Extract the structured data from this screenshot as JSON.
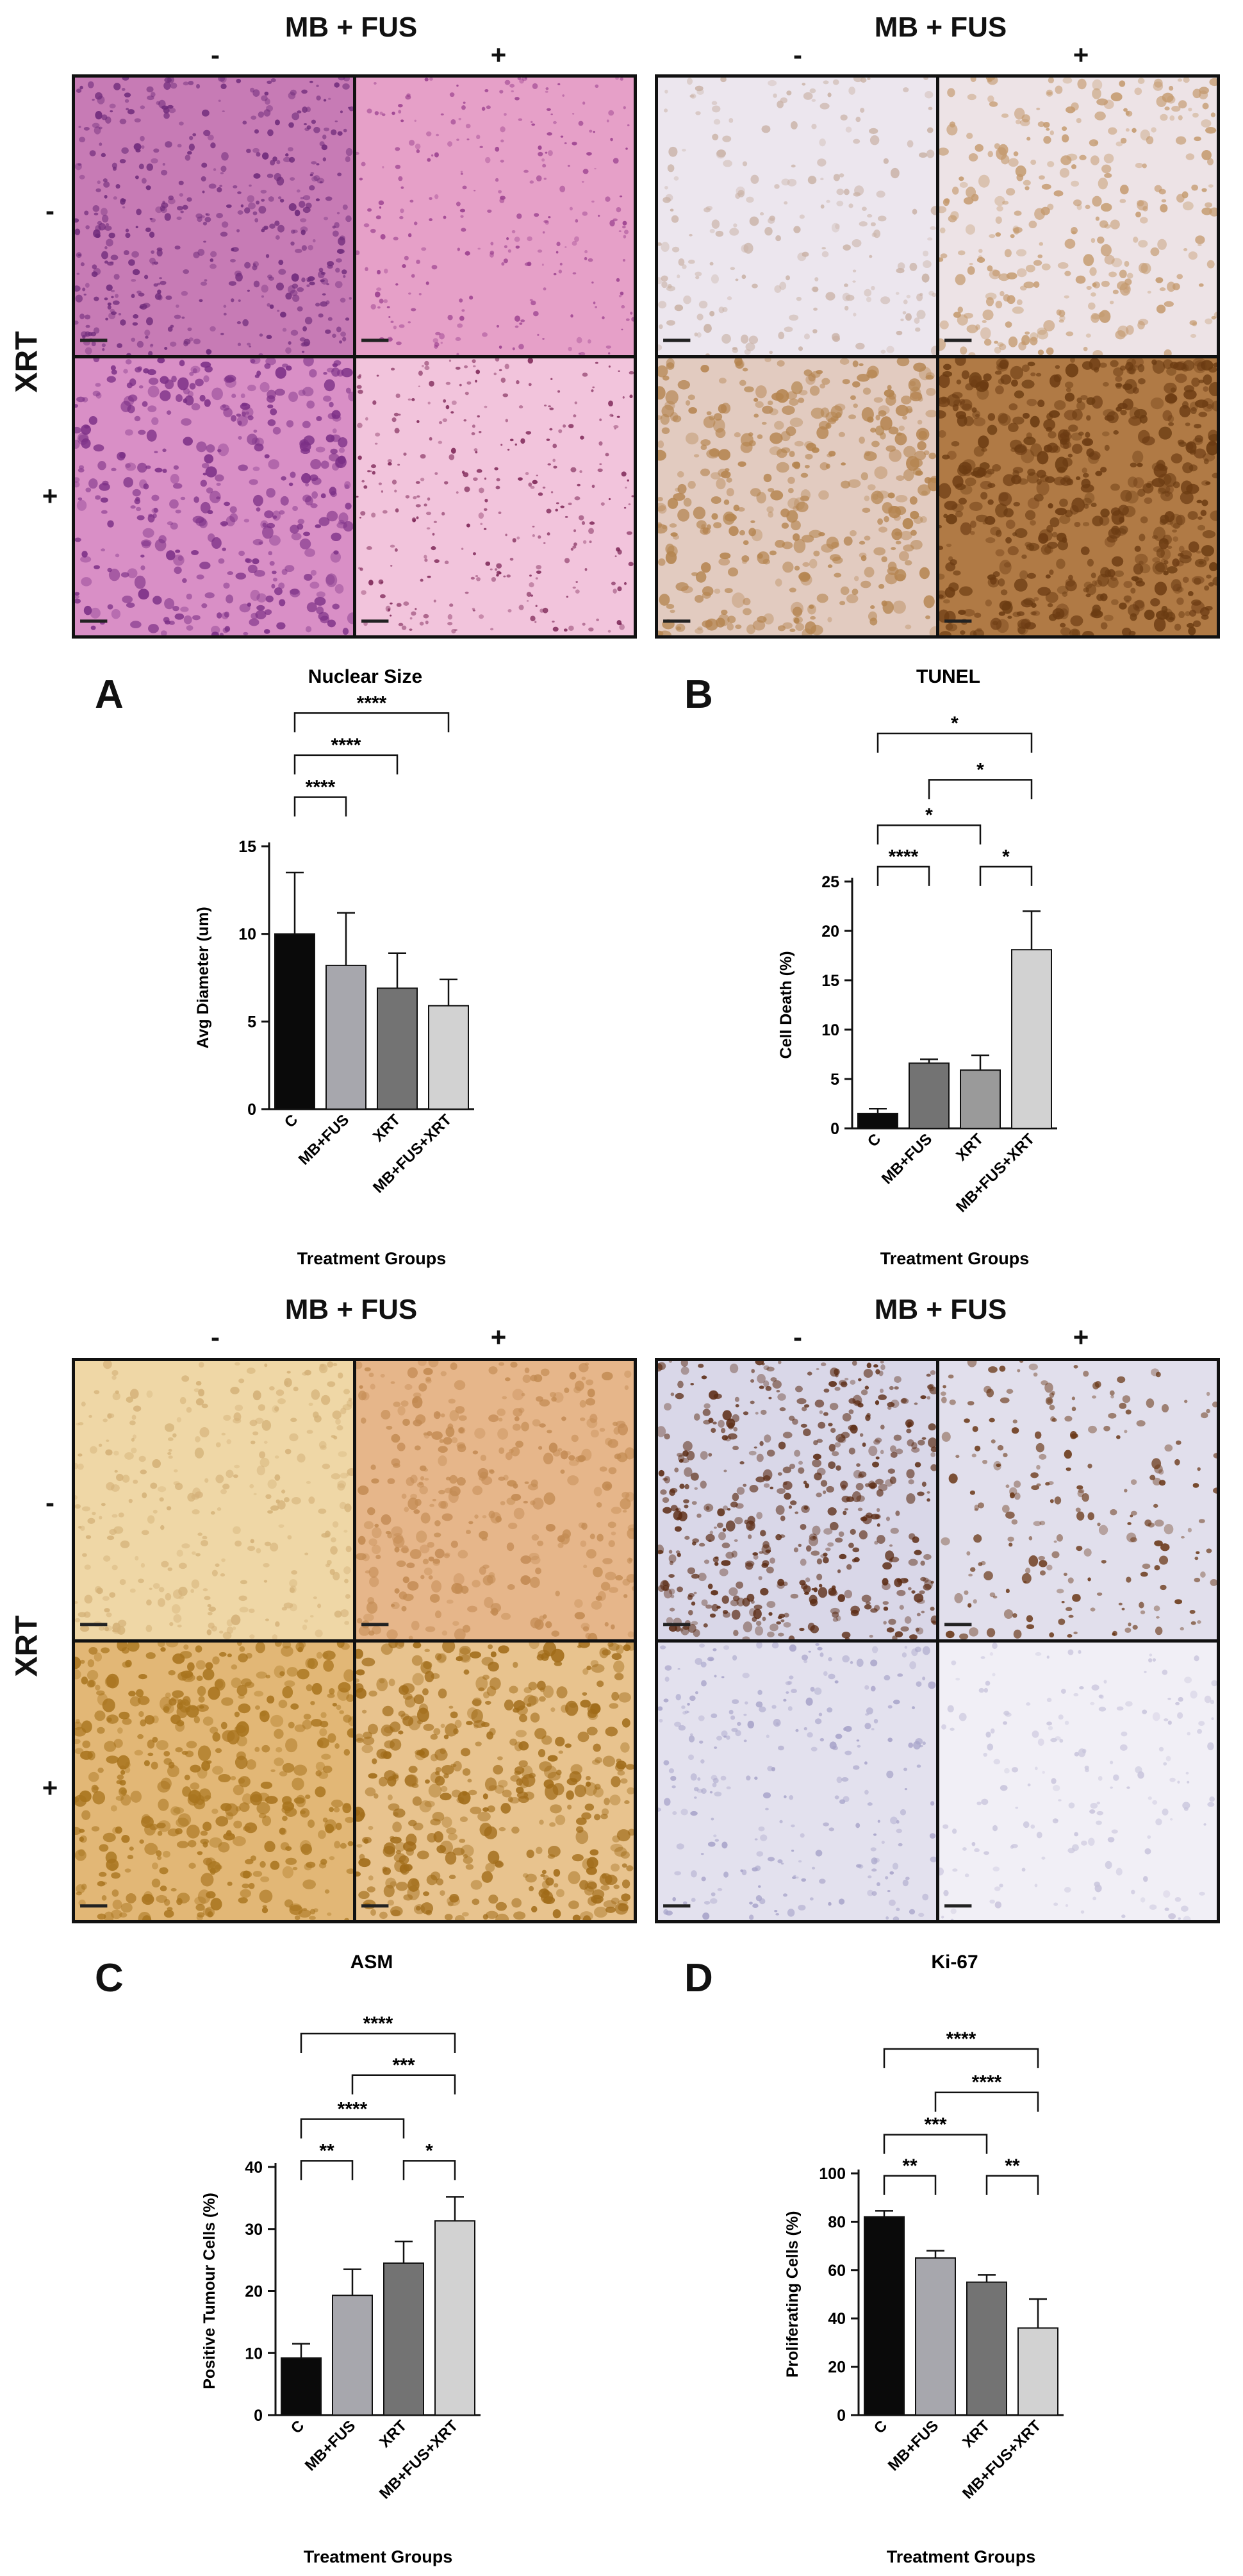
{
  "figure": {
    "micrograph_blocks": [
      {
        "header": "MB + FUS",
        "minus": "-",
        "plus": "+",
        "tiles": [
          {
            "base": "#c77bb5",
            "spot": "#6e2a7a",
            "density": 0.55,
            "spot_size": 4
          },
          {
            "base": "#e6a0c8",
            "spot": "#9a3f8e",
            "density": 0.3,
            "spot_size": 3
          },
          {
            "base": "#d98fc6",
            "spot": "#7b2f86",
            "density": 0.45,
            "spot_size": 6
          },
          {
            "base": "#f2c4dc",
            "spot": "#7c2455",
            "density": 0.35,
            "spot_size": 3
          }
        ]
      },
      {
        "header": "MB + FUS",
        "minus": "-",
        "plus": "+",
        "tiles": [
          {
            "base": "#ece6ee",
            "spot": "#c9b2a6",
            "density": 0.25,
            "spot_size": 5
          },
          {
            "base": "#ede3e6",
            "spot": "#c49a6e",
            "density": 0.35,
            "spot_size": 6
          },
          {
            "base": "#e2cbc0",
            "spot": "#b4844f",
            "density": 0.45,
            "spot_size": 7
          },
          {
            "base": "#b07a45",
            "spot": "#6b3b12",
            "density": 0.65,
            "spot_size": 7
          }
        ]
      },
      {
        "header": "MB + FUS",
        "minus": "-",
        "plus": "+",
        "tiles": [
          {
            "base": "#efd7a6",
            "spot": "#d4b178",
            "density": 0.35,
            "spot_size": 5
          },
          {
            "base": "#e6b68a",
            "spot": "#c28a52",
            "density": 0.4,
            "spot_size": 6
          },
          {
            "base": "#e2b776",
            "spot": "#a8741e",
            "density": 0.5,
            "spot_size": 7
          },
          {
            "base": "#e8c38e",
            "spot": "#a06b18",
            "density": 0.5,
            "spot_size": 7
          }
        ]
      },
      {
        "header": "MB + FUS",
        "minus": "-",
        "plus": "+",
        "tiles": [
          {
            "base": "#d9d7e8",
            "spot": "#5a2a12",
            "density": 0.6,
            "spot_size": 5
          },
          {
            "base": "#e1dfec",
            "spot": "#6a3818",
            "density": 0.25,
            "spot_size": 5
          },
          {
            "base": "#e3e1ee",
            "spot": "#a7a3c9",
            "density": 0.3,
            "spot_size": 4
          },
          {
            "base": "#f1eff6",
            "spot": "#c8c4dc",
            "density": 0.2,
            "spot_size": 4
          }
        ]
      }
    ],
    "row_labels": {
      "title": "XRT",
      "minus": "-",
      "plus": "+"
    }
  },
  "chart_data": [
    {
      "letter": "A",
      "type": "bar",
      "title": "Nuclear Size",
      "xlabel": "Treatment Groups",
      "ylabel": "Avg Diameter (um)",
      "categories": [
        "C",
        "MB+FUS",
        "XRT",
        "MB+FUS+XRT"
      ],
      "values": [
        10.0,
        8.2,
        6.9,
        5.9
      ],
      "errors": [
        3.5,
        3.0,
        2.0,
        1.5
      ],
      "colors": [
        "#0a0a0a",
        "#a7a7ad",
        "#737373",
        "#d2d2d2"
      ],
      "ylim": [
        0,
        15
      ],
      "yticks": [
        0,
        5,
        10,
        15
      ],
      "significance": [
        {
          "from": 0,
          "to": 1,
          "label": "****",
          "level": 17.8
        },
        {
          "from": 0,
          "to": 2,
          "label": "****",
          "level": 20.2
        },
        {
          "from": 0,
          "to": 3,
          "label": "****",
          "level": 22.6
        }
      ]
    },
    {
      "letter": "B",
      "type": "bar",
      "title": "TUNEL",
      "xlabel": "Treatment Groups",
      "ylabel": "Cell Death (%)",
      "categories": [
        "C",
        "MB+FUS",
        "XRT",
        "MB+FUS+XRT"
      ],
      "values": [
        1.5,
        6.6,
        5.9,
        18.1
      ],
      "errors": [
        0.5,
        0.4,
        1.5,
        3.9
      ],
      "colors": [
        "#0a0a0a",
        "#737373",
        "#9a9a9a",
        "#d2d2d2"
      ],
      "ylim": [
        0,
        25
      ],
      "yticks": [
        0,
        5,
        10,
        15,
        20,
        25
      ],
      "significance": [
        {
          "from": 0,
          "to": 1,
          "label": "****",
          "level": 26.5
        },
        {
          "from": 2,
          "to": 3,
          "label": "*",
          "level": 26.5
        },
        {
          "from": 0,
          "to": 2,
          "label": "*",
          "level": 30.7
        },
        {
          "from": 1,
          "to": 3,
          "label": "*",
          "level": 35.3
        },
        {
          "from": 0,
          "to": 3,
          "label": "*",
          "level": 40.0
        }
      ]
    },
    {
      "letter": "C",
      "type": "bar",
      "title": "ASM",
      "xlabel": "Treatment Groups",
      "ylabel": "Positive Tumour Cells (%)",
      "categories": [
        "C",
        "MB+FUS",
        "XRT",
        "MB+FUS+XRT"
      ],
      "values": [
        9.2,
        19.3,
        24.5,
        31.3
      ],
      "errors": [
        2.3,
        4.2,
        3.5,
        3.9
      ],
      "colors": [
        "#0a0a0a",
        "#a7a7ad",
        "#737373",
        "#d2d2d2"
      ],
      "ylim": [
        0,
        40
      ],
      "yticks": [
        0,
        10,
        20,
        30,
        40
      ],
      "significance": [
        {
          "from": 0,
          "to": 1,
          "label": "**",
          "level": 41.0
        },
        {
          "from": 2,
          "to": 3,
          "label": "*",
          "level": 41.0
        },
        {
          "from": 0,
          "to": 2,
          "label": "****",
          "level": 47.7
        },
        {
          "from": 1,
          "to": 3,
          "label": "***",
          "level": 54.8
        },
        {
          "from": 0,
          "to": 3,
          "label": "****",
          "level": 61.5
        }
      ]
    },
    {
      "letter": "D",
      "type": "bar",
      "title": "Ki-67",
      "xlabel": "Treatment Groups",
      "ylabel": "Proliferating Cells (%)",
      "categories": [
        "C",
        "MB+FUS",
        "XRT",
        "MB+FUS+XRT"
      ],
      "values": [
        82,
        65,
        55,
        36
      ],
      "errors": [
        2.5,
        3.0,
        3.0,
        12.0
      ],
      "colors": [
        "#0a0a0a",
        "#a7a7ad",
        "#737373",
        "#d2d2d2"
      ],
      "ylim": [
        0,
        100
      ],
      "yticks": [
        0,
        20,
        40,
        60,
        80,
        100
      ],
      "significance": [
        {
          "from": 0,
          "to": 1,
          "label": "**",
          "level": 99.0
        },
        {
          "from": 2,
          "to": 3,
          "label": "**",
          "level": 99.0
        },
        {
          "from": 0,
          "to": 2,
          "label": "***",
          "level": 116.0
        },
        {
          "from": 1,
          "to": 3,
          "label": "****",
          "level": 133.5
        },
        {
          "from": 0,
          "to": 3,
          "label": "****",
          "level": 151.5
        }
      ]
    }
  ]
}
